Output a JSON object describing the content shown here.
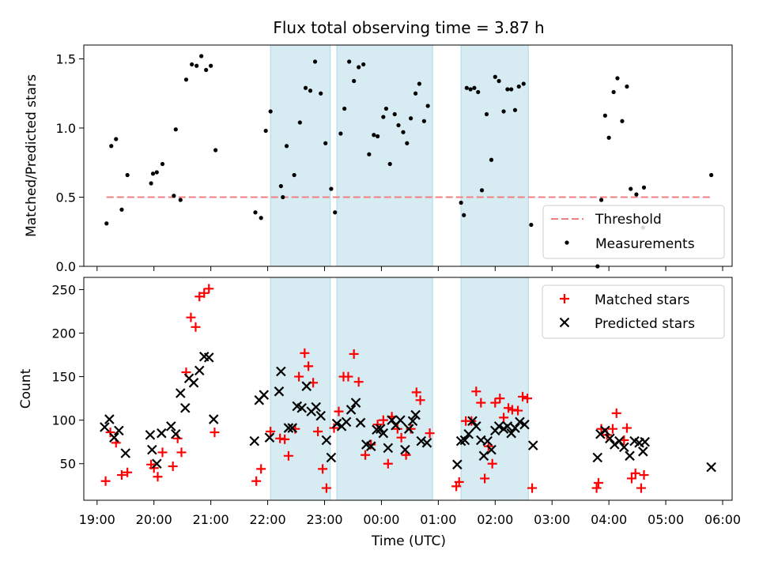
{
  "chart_data": [
    {
      "type": "scatter",
      "title": "Flux total observing time = 3.87 h",
      "ylabel": "Matched/Predicted stars",
      "xlim": [
        "18:46",
        "06:10"
      ],
      "ylim": [
        0,
        1.6
      ],
      "yticks": [
        "0.0",
        "0.5",
        "1.0",
        "1.5"
      ],
      "grid": false,
      "legend": "lower-right",
      "shaded_intervals": [
        [
          "22:03",
          "23:06"
        ],
        [
          "23:13",
          "00:54"
        ],
        [
          "01:24",
          "02:35"
        ]
      ],
      "threshold": {
        "name": "Threshold",
        "value": 0.5,
        "x": [
          "19:10",
          "05:48"
        ],
        "color": "#f08080"
      },
      "series": [
        {
          "name": "Measurements",
          "color": "#000000",
          "points": [
            [
              "19:10",
              0.31
            ],
            [
              "19:15",
              0.87
            ],
            [
              "19:20",
              0.92
            ],
            [
              "19:26",
              0.41
            ],
            [
              "19:32",
              0.66
            ],
            [
              "19:57",
              0.6
            ],
            [
              "19:59",
              0.67
            ],
            [
              "20:03",
              0.68
            ],
            [
              "20:09",
              0.74
            ],
            [
              "20:21",
              0.51
            ],
            [
              "20:23",
              0.99
            ],
            [
              "20:28",
              0.48
            ],
            [
              "20:34",
              1.35
            ],
            [
              "20:40",
              1.46
            ],
            [
              "20:45",
              1.45
            ],
            [
              "20:50",
              1.52
            ],
            [
              "20:55",
              1.42
            ],
            [
              "21:00",
              1.45
            ],
            [
              "21:05",
              0.84
            ],
            [
              "21:47",
              0.39
            ],
            [
              "21:53",
              0.35
            ],
            [
              "21:58",
              0.98
            ],
            [
              "22:03",
              1.12
            ],
            [
              "22:14",
              0.58
            ],
            [
              "22:16",
              0.5
            ],
            [
              "22:20",
              0.87
            ],
            [
              "22:28",
              0.66
            ],
            [
              "22:34",
              1.04
            ],
            [
              "22:40",
              1.29
            ],
            [
              "22:45",
              1.27
            ],
            [
              "22:50",
              1.48
            ],
            [
              "22:56",
              1.25
            ],
            [
              "23:01",
              0.89
            ],
            [
              "23:07",
              0.56
            ],
            [
              "23:11",
              0.39
            ],
            [
              "23:17",
              0.96
            ],
            [
              "23:21",
              1.14
            ],
            [
              "23:26",
              1.48
            ],
            [
              "23:31",
              1.34
            ],
            [
              "23:36",
              1.44
            ],
            [
              "23:41",
              1.46
            ],
            [
              "23:47",
              0.81
            ],
            [
              "23:52",
              0.95
            ],
            [
              "23:56",
              0.94
            ],
            [
              "00:02",
              1.08
            ],
            [
              "00:05",
              1.14
            ],
            [
              "00:09",
              0.74
            ],
            [
              "00:14",
              1.1
            ],
            [
              "00:18",
              1.02
            ],
            [
              "00:23",
              0.97
            ],
            [
              "00:27",
              0.89
            ],
            [
              "00:31",
              1.07
            ],
            [
              "00:36",
              1.25
            ],
            [
              "00:40",
              1.32
            ],
            [
              "00:45",
              1.05
            ],
            [
              "00:49",
              1.16
            ],
            [
              "01:24",
              0.46
            ],
            [
              "01:27",
              0.37
            ],
            [
              "01:30",
              1.29
            ],
            [
              "01:34",
              1.28
            ],
            [
              "01:38",
              1.29
            ],
            [
              "01:42",
              1.26
            ],
            [
              "01:46",
              0.55
            ],
            [
              "01:51",
              1.1
            ],
            [
              "01:56",
              0.77
            ],
            [
              "02:00",
              1.37
            ],
            [
              "02:04",
              1.34
            ],
            [
              "02:09",
              1.12
            ],
            [
              "02:13",
              1.28
            ],
            [
              "02:17",
              1.28
            ],
            [
              "02:21",
              1.13
            ],
            [
              "02:25",
              1.3
            ],
            [
              "02:30",
              1.32
            ],
            [
              "02:38",
              0.3
            ],
            [
              "03:48",
              0.0
            ],
            [
              "03:52",
              0.48
            ],
            [
              "03:56",
              1.09
            ],
            [
              "04:00",
              0.93
            ],
            [
              "04:05",
              1.26
            ],
            [
              "04:09",
              1.36
            ],
            [
              "04:14",
              1.05
            ],
            [
              "04:19",
              1.3
            ],
            [
              "04:23",
              0.56
            ],
            [
              "04:29",
              0.52
            ],
            [
              "04:36",
              0.28
            ],
            [
              "04:37",
              0.57
            ],
            [
              "05:48",
              0.66
            ]
          ]
        }
      ]
    },
    {
      "type": "scatter",
      "xlabel": "Time (UTC)",
      "ylabel": "Count",
      "xlim": [
        "18:46",
        "06:10"
      ],
      "ylim": [
        8,
        264
      ],
      "xticks": [
        "19:00",
        "20:00",
        "21:00",
        "22:00",
        "23:00",
        "00:00",
        "01:00",
        "02:00",
        "03:00",
        "04:00",
        "05:00",
        "06:00"
      ],
      "yticks": [
        "50",
        "100",
        "150",
        "200",
        "250"
      ],
      "grid": false,
      "legend": "upper-right",
      "shaded_intervals": [
        [
          "22:03",
          "23:06"
        ],
        [
          "23:13",
          "00:54"
        ],
        [
          "01:24",
          "02:35"
        ]
      ],
      "series": [
        {
          "name": "Matched stars",
          "marker": "plus",
          "color": "#ff0000",
          "points": [
            [
              "19:09",
              30
            ],
            [
              "19:14",
              86
            ],
            [
              "19:20",
              74
            ],
            [
              "19:26",
              37
            ],
            [
              "19:32",
              40
            ],
            [
              "19:57",
              49
            ],
            [
              "20:00",
              45
            ],
            [
              "20:04",
              35
            ],
            [
              "20:09",
              63
            ],
            [
              "20:20",
              47
            ],
            [
              "20:25",
              79
            ],
            [
              "20:29",
              63
            ],
            [
              "20:34",
              155
            ],
            [
              "20:39",
              218
            ],
            [
              "20:44",
              207
            ],
            [
              "20:48",
              242
            ],
            [
              "20:53",
              246
            ],
            [
              "20:58",
              251
            ],
            [
              "21:04",
              86
            ],
            [
              "21:48",
              30
            ],
            [
              "21:53",
              44
            ],
            [
              "22:03",
              87
            ],
            [
              "22:13",
              79
            ],
            [
              "22:18",
              78
            ],
            [
              "22:22",
              59
            ],
            [
              "22:29",
              90
            ],
            [
              "22:33",
              150
            ],
            [
              "22:39",
              177
            ],
            [
              "22:43",
              162
            ],
            [
              "22:48",
              143
            ],
            [
              "22:53",
              87
            ],
            [
              "22:58",
              44
            ],
            [
              "23:02",
              22
            ],
            [
              "23:10",
              91
            ],
            [
              "23:15",
              110
            ],
            [
              "23:20",
              150
            ],
            [
              "23:25",
              150
            ],
            [
              "23:31",
              176
            ],
            [
              "23:36",
              144
            ],
            [
              "23:43",
              60
            ],
            [
              "23:49",
              72
            ],
            [
              "23:56",
              95
            ],
            [
              "00:02",
              100
            ],
            [
              "00:07",
              50
            ],
            [
              "00:11",
              104
            ],
            [
              "00:17",
              90
            ],
            [
              "00:21",
              80
            ],
            [
              "00:26",
              60
            ],
            [
              "00:31",
              90
            ],
            [
              "00:37",
              132
            ],
            [
              "00:41",
              123
            ],
            [
              "00:51",
              85
            ],
            [
              "01:19",
              24
            ],
            [
              "01:22",
              29
            ],
            [
              "01:29",
              99
            ],
            [
              "01:35",
              99
            ],
            [
              "01:40",
              133
            ],
            [
              "01:45",
              120
            ],
            [
              "01:49",
              33
            ],
            [
              "01:53",
              70
            ],
            [
              "01:57",
              50
            ],
            [
              "02:00",
              120
            ],
            [
              "02:05",
              125
            ],
            [
              "02:09",
              103
            ],
            [
              "02:14",
              114
            ],
            [
              "02:18",
              112
            ],
            [
              "02:24",
              111
            ],
            [
              "02:29",
              127
            ],
            [
              "02:34",
              125
            ],
            [
              "02:39",
              22
            ],
            [
              "03:47",
              22
            ],
            [
              "03:49",
              28
            ],
            [
              "03:52",
              90
            ],
            [
              "03:58",
              83
            ],
            [
              "04:04",
              90
            ],
            [
              "04:08",
              108
            ],
            [
              "04:16",
              77
            ],
            [
              "04:19",
              91
            ],
            [
              "04:24",
              33
            ],
            [
              "04:28",
              39
            ],
            [
              "04:34",
              22
            ],
            [
              "04:37",
              37
            ]
          ]
        },
        {
          "name": "Predicted stars",
          "marker": "x",
          "color": "#000000",
          "points": [
            [
              "19:08",
              92
            ],
            [
              "19:13",
              101
            ],
            [
              "19:18",
              80
            ],
            [
              "19:23",
              88
            ],
            [
              "19:30",
              62
            ],
            [
              "19:56",
              83
            ],
            [
              "19:58",
              66
            ],
            [
              "20:03",
              50
            ],
            [
              "20:08",
              85
            ],
            [
              "20:18",
              93
            ],
            [
              "20:23",
              84
            ],
            [
              "20:28",
              131
            ],
            [
              "20:33",
              114
            ],
            [
              "20:37",
              148
            ],
            [
              "20:42",
              143
            ],
            [
              "20:48",
              157
            ],
            [
              "20:53",
              173
            ],
            [
              "20:58",
              172
            ],
            [
              "21:03",
              101
            ],
            [
              "21:46",
              76
            ],
            [
              "21:51",
              123
            ],
            [
              "21:56",
              129
            ],
            [
              "22:02",
              80
            ],
            [
              "22:12",
              133
            ],
            [
              "22:14",
              156
            ],
            [
              "22:22",
              91
            ],
            [
              "22:26",
              91
            ],
            [
              "22:31",
              116
            ],
            [
              "22:36",
              114
            ],
            [
              "22:41",
              139
            ],
            [
              "22:46",
              110
            ],
            [
              "22:51",
              115
            ],
            [
              "22:56",
              105
            ],
            [
              "23:02",
              77
            ],
            [
              "23:07",
              57
            ],
            [
              "23:13",
              96
            ],
            [
              "23:18",
              93
            ],
            [
              "23:23",
              98
            ],
            [
              "23:28",
              112
            ],
            [
              "23:33",
              120
            ],
            [
              "23:38",
              97
            ],
            [
              "23:44",
              72
            ],
            [
              "23:49",
              70
            ],
            [
              "23:55",
              89
            ],
            [
              "23:59",
              90
            ],
            [
              "00:02",
              85
            ],
            [
              "00:07",
              68
            ],
            [
              "00:11",
              100
            ],
            [
              "00:15",
              94
            ],
            [
              "00:20",
              100
            ],
            [
              "00:25",
              66
            ],
            [
              "00:29",
              90
            ],
            [
              "00:33",
              99
            ],
            [
              "00:36",
              106
            ],
            [
              "00:42",
              76
            ],
            [
              "00:48",
              74
            ],
            [
              "01:20",
              49
            ],
            [
              "01:24",
              76
            ],
            [
              "01:28",
              77
            ],
            [
              "01:32",
              84
            ],
            [
              "01:36",
              99
            ],
            [
              "01:40",
              93
            ],
            [
              "01:45",
              77
            ],
            [
              "01:48",
              59
            ],
            [
              "01:52",
              76
            ],
            [
              "01:56",
              66
            ],
            [
              "02:00",
              88
            ],
            [
              "02:04",
              93
            ],
            [
              "02:09",
              90
            ],
            [
              "02:13",
              93
            ],
            [
              "02:17",
              85
            ],
            [
              "02:21",
              91
            ],
            [
              "02:26",
              98
            ],
            [
              "02:31",
              95
            ],
            [
              "02:40",
              71
            ],
            [
              "03:48",
              57
            ],
            [
              "03:51",
              84
            ],
            [
              "03:56",
              88
            ],
            [
              "04:01",
              79
            ],
            [
              "04:06",
              72
            ],
            [
              "04:11",
              76
            ],
            [
              "04:16",
              69
            ],
            [
              "04:22",
              59
            ],
            [
              "04:27",
              76
            ],
            [
              "04:32",
              74
            ],
            [
              "04:36",
              64
            ],
            [
              "04:38",
              75
            ],
            [
              "05:48",
              46
            ]
          ]
        }
      ]
    }
  ]
}
